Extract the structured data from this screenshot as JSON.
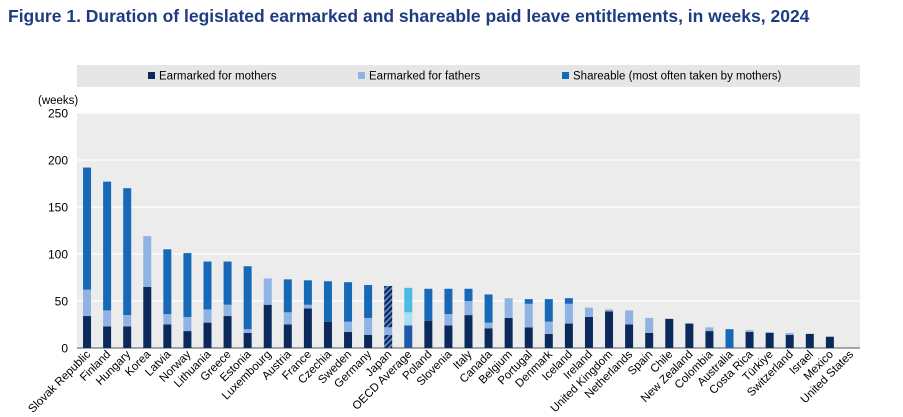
{
  "title": "Figure  1. Duration of legislated earmarked and shareable paid leave entitlements, in weeks, 2024",
  "colors": {
    "mothers": "#0b2a5b",
    "fathers": "#8fb3e3",
    "shareable": "#1769b8",
    "oecd_mothers": "#1e5aa8",
    "oecd_fathers": "#a8def0",
    "oecd_shareable": "#4bb9e4",
    "legend_bg": "#e6e6e6",
    "grid": "#ffffff",
    "plot_bg": "#ececec"
  },
  "chart_data": {
    "type": "bar",
    "stacked": true,
    "unit_label": "(weeks)",
    "ylim": [
      0,
      250
    ],
    "yticks": [
      0,
      50,
      100,
      150,
      200,
      250
    ],
    "legend": [
      {
        "key": "mothers",
        "label": "Earmarked for mothers"
      },
      {
        "key": "fathers",
        "label": "Earmarked for fathers"
      },
      {
        "key": "shareable",
        "label": "Shareable (most often taken by mothers)"
      }
    ],
    "categories": [
      "Slovak Republic",
      "Finland",
      "Hungary",
      "Korea",
      "Latvia",
      "Norway",
      "Lithuania",
      "Greece",
      "Estonia",
      "Luxembourg",
      "Austria",
      "France",
      "Czechia",
      "Sweden",
      "Germany",
      "Japan",
      "OECD Average",
      "Poland",
      "Slovenia",
      "Italy",
      "Canada",
      "Belgium",
      "Portugal",
      "Denmark",
      "Iceland",
      "Ireland",
      "United Kingdom",
      "Netherlands",
      "Spain",
      "Chile",
      "New Zealand",
      "Colombia",
      "Australia",
      "Costa Rica",
      "Türkiye",
      "Switzerland",
      "Israel",
      "Mexico",
      "United States"
    ],
    "series": [
      {
        "key": "mothers",
        "values": [
          34,
          23,
          23,
          65,
          25,
          18,
          27,
          34,
          16,
          46,
          25,
          42,
          28,
          17,
          14,
          14,
          24,
          29,
          24,
          35,
          21,
          32,
          22,
          15,
          26,
          33,
          39,
          25,
          16,
          31,
          26,
          18,
          0,
          17,
          16,
          14,
          15,
          12,
          0
        ]
      },
      {
        "key": "fathers",
        "values": [
          28,
          17,
          12,
          54,
          11,
          15,
          14,
          12,
          4,
          28,
          13,
          4,
          0,
          11,
          18,
          8,
          14,
          0,
          12,
          15,
          6,
          21,
          25,
          13,
          21,
          10,
          2,
          15,
          16,
          0,
          0,
          4,
          0,
          2,
          1,
          2,
          0,
          0,
          0
        ]
      },
      {
        "key": "shareable",
        "values": [
          130,
          137,
          135,
          0,
          69,
          68,
          51,
          46,
          67,
          0,
          35,
          26,
          43,
          42,
          35,
          44,
          26,
          34,
          27,
          13,
          30,
          0,
          5,
          24,
          6,
          0,
          0,
          0,
          0,
          0,
          0,
          0,
          20,
          0,
          0,
          0,
          0,
          0,
          0
        ]
      }
    ],
    "highlight": {
      "OECD Average": "lighter",
      "Japan": "hatched"
    }
  }
}
